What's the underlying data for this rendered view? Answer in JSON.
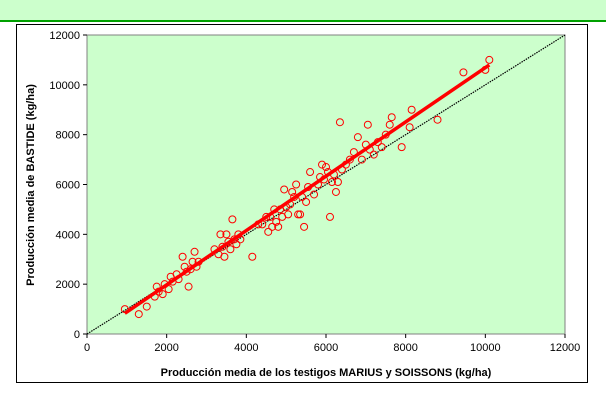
{
  "chart_data": {
    "type": "scatter",
    "title": "",
    "xlabel": "Producción media de los testigos MARIUS y SOISSONS (kg/ha)",
    "ylabel": "Producción media de BASTIDE (kg/ha)",
    "xlim": [
      0,
      12000
    ],
    "ylim": [
      0,
      12000
    ],
    "xticks": [
      "0",
      "2000",
      "4000",
      "6000",
      "8000",
      "10000",
      "12000"
    ],
    "yticks": [
      "0",
      "2000",
      "4000",
      "6000",
      "8000",
      "10000",
      "12000"
    ],
    "grid": false,
    "plot_background": "#ccffcc",
    "series": [
      {
        "kind": "points",
        "marker": "hollow-circle",
        "color": "#ff0000",
        "points": [
          [
            950,
            1000
          ],
          [
            1300,
            800
          ],
          [
            1500,
            1100
          ],
          [
            1700,
            1500
          ],
          [
            1750,
            1900
          ],
          [
            1800,
            1700
          ],
          [
            1900,
            1600
          ],
          [
            1950,
            2000
          ],
          [
            2050,
            1800
          ],
          [
            2100,
            2300
          ],
          [
            2150,
            2100
          ],
          [
            2250,
            2400
          ],
          [
            2300,
            2200
          ],
          [
            2400,
            3100
          ],
          [
            2450,
            2700
          ],
          [
            2500,
            2500
          ],
          [
            2550,
            1900
          ],
          [
            2600,
            2600
          ],
          [
            2650,
            2900
          ],
          [
            2700,
            3300
          ],
          [
            2750,
            2700
          ],
          [
            2800,
            2900
          ],
          [
            3200,
            3400
          ],
          [
            3300,
            3200
          ],
          [
            3350,
            4000
          ],
          [
            3400,
            3500
          ],
          [
            3450,
            3100
          ],
          [
            3500,
            4000
          ],
          [
            3550,
            3700
          ],
          [
            3600,
            3400
          ],
          [
            3650,
            4600
          ],
          [
            3700,
            3800
          ],
          [
            3750,
            3600
          ],
          [
            3800,
            4000
          ],
          [
            3850,
            3800
          ],
          [
            4150,
            3100
          ],
          [
            4300,
            4400
          ],
          [
            4400,
            4400
          ],
          [
            4500,
            4700
          ],
          [
            4550,
            4100
          ],
          [
            4600,
            4700
          ],
          [
            4650,
            4300
          ],
          [
            4700,
            5000
          ],
          [
            4750,
            4500
          ],
          [
            4800,
            4300
          ],
          [
            4850,
            5000
          ],
          [
            4900,
            4700
          ],
          [
            4950,
            5800
          ],
          [
            5000,
            5100
          ],
          [
            5050,
            4800
          ],
          [
            5100,
            5200
          ],
          [
            5150,
            5700
          ],
          [
            5200,
            5500
          ],
          [
            5250,
            6000
          ],
          [
            5300,
            4800
          ],
          [
            5350,
            4800
          ],
          [
            5400,
            5500
          ],
          [
            5450,
            4300
          ],
          [
            5500,
            5300
          ],
          [
            5550,
            5900
          ],
          [
            5600,
            6500
          ],
          [
            5700,
            5600
          ],
          [
            5800,
            6000
          ],
          [
            5850,
            6300
          ],
          [
            5900,
            6800
          ],
          [
            5950,
            6200
          ],
          [
            6000,
            6700
          ],
          [
            6050,
            6500
          ],
          [
            6100,
            4700
          ],
          [
            6150,
            6100
          ],
          [
            6200,
            6400
          ],
          [
            6250,
            5700
          ],
          [
            6300,
            6100
          ],
          [
            6350,
            8500
          ],
          [
            6400,
            6600
          ],
          [
            6500,
            6800
          ],
          [
            6600,
            7000
          ],
          [
            6700,
            7300
          ],
          [
            6800,
            7900
          ],
          [
            6900,
            7000
          ],
          [
            7000,
            7600
          ],
          [
            7050,
            8400
          ],
          [
            7100,
            7400
          ],
          [
            7200,
            7200
          ],
          [
            7300,
            7700
          ],
          [
            7400,
            7500
          ],
          [
            7500,
            8000
          ],
          [
            7600,
            8400
          ],
          [
            7650,
            8700
          ],
          [
            7900,
            7500
          ],
          [
            8100,
            8300
          ],
          [
            8150,
            9000
          ],
          [
            8800,
            8600
          ],
          [
            9450,
            10500
          ],
          [
            10000,
            10600
          ],
          [
            10100,
            11000
          ]
        ]
      },
      {
        "kind": "line",
        "name": "",
        "style": "dotted",
        "color": "#000000",
        "from": [
          0,
          0
        ],
        "to": [
          12000,
          12000
        ]
      },
      {
        "kind": "line",
        "name": "",
        "style": "solid",
        "color": "#ff0000",
        "from": [
          950,
          830
        ],
        "to": [
          10100,
          10800
        ]
      }
    ]
  }
}
